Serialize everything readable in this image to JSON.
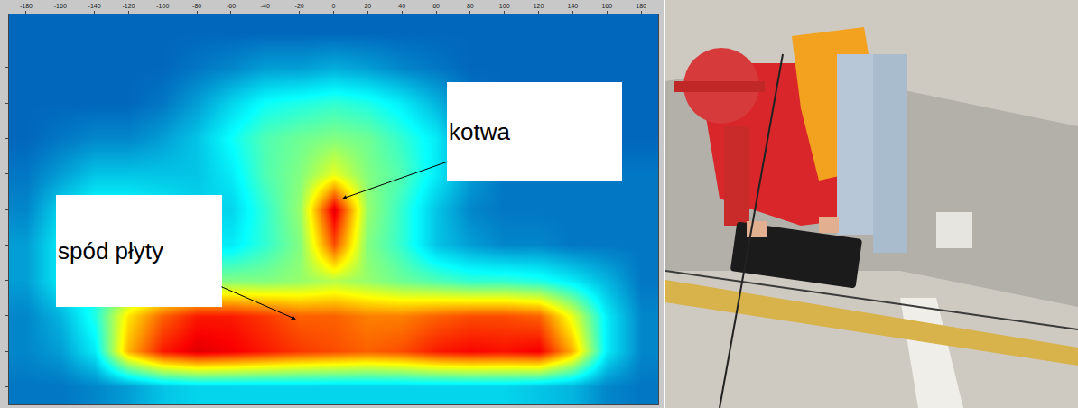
{
  "chart_data": {
    "type": "heatmap",
    "x": [
      -180,
      -160,
      -140,
      -120,
      -100,
      -80,
      -60,
      -40,
      -20,
      0,
      20,
      40,
      60,
      80,
      100,
      120,
      140,
      160,
      180
    ],
    "y": [
      0,
      1,
      2,
      3,
      4,
      5,
      6,
      7,
      8,
      9,
      10
    ],
    "z": [
      [
        0.2,
        0.2,
        0.22,
        0.25,
        0.3,
        0.32,
        0.32,
        0.32,
        0.32,
        0.32,
        0.32,
        0.32,
        0.32,
        0.32,
        0.32,
        0.3,
        0.28,
        0.22,
        0.2
      ],
      [
        0.22,
        0.25,
        0.35,
        0.7,
        0.85,
        0.9,
        0.88,
        0.85,
        0.82,
        0.8,
        0.78,
        0.8,
        0.85,
        0.87,
        0.86,
        0.88,
        0.7,
        0.35,
        0.22
      ],
      [
        0.22,
        0.28,
        0.4,
        0.65,
        0.78,
        0.85,
        0.85,
        0.82,
        0.78,
        0.78,
        0.75,
        0.75,
        0.78,
        0.8,
        0.8,
        0.78,
        0.6,
        0.35,
        0.22
      ],
      [
        0.25,
        0.35,
        0.4,
        0.45,
        0.48,
        0.5,
        0.5,
        0.5,
        0.52,
        0.55,
        0.52,
        0.48,
        0.45,
        0.42,
        0.42,
        0.4,
        0.35,
        0.28,
        0.2
      ],
      [
        0.25,
        0.35,
        0.4,
        0.4,
        0.38,
        0.35,
        0.35,
        0.42,
        0.5,
        0.8,
        0.5,
        0.42,
        0.3,
        0.25,
        0.22,
        0.22,
        0.2,
        0.2,
        0.2
      ],
      [
        0.22,
        0.32,
        0.38,
        0.38,
        0.35,
        0.32,
        0.32,
        0.42,
        0.52,
        0.9,
        0.52,
        0.42,
        0.3,
        0.22,
        0.2,
        0.2,
        0.2,
        0.2,
        0.2
      ],
      [
        0.2,
        0.25,
        0.3,
        0.3,
        0.3,
        0.3,
        0.35,
        0.45,
        0.5,
        0.6,
        0.5,
        0.45,
        0.35,
        0.25,
        0.2,
        0.2,
        0.2,
        0.2,
        0.2
      ],
      [
        0.18,
        0.2,
        0.22,
        0.22,
        0.25,
        0.3,
        0.38,
        0.45,
        0.48,
        0.5,
        0.48,
        0.42,
        0.35,
        0.22,
        0.18,
        0.18,
        0.18,
        0.18,
        0.18
      ],
      [
        0.18,
        0.18,
        0.18,
        0.18,
        0.2,
        0.25,
        0.32,
        0.38,
        0.4,
        0.42,
        0.4,
        0.35,
        0.28,
        0.2,
        0.18,
        0.18,
        0.18,
        0.18,
        0.18
      ],
      [
        0.18,
        0.18,
        0.18,
        0.18,
        0.18,
        0.2,
        0.22,
        0.25,
        0.25,
        0.27,
        0.25,
        0.22,
        0.2,
        0.18,
        0.18,
        0.18,
        0.18,
        0.18,
        0.18
      ],
      [
        0.18,
        0.18,
        0.18,
        0.18,
        0.18,
        0.18,
        0.18,
        0.18,
        0.18,
        0.18,
        0.18,
        0.18,
        0.18,
        0.18,
        0.18,
        0.18,
        0.18,
        0.18,
        0.18
      ]
    ],
    "zlim": [
      0,
      1
    ],
    "xlim": [
      -190,
      190
    ],
    "xticks": [
      -180,
      -160,
      -140,
      -120,
      -100,
      -80,
      -60,
      -40,
      -20,
      0,
      20,
      40,
      60,
      80,
      100,
      120,
      140,
      160,
      180
    ],
    "ylim": [
      -0.5,
      10.5
    ],
    "yticks": [
      0,
      1,
      2,
      3,
      4,
      5,
      6,
      7,
      8,
      9,
      10
    ],
    "tick_labels": "x",
    "annotations": [
      {
        "text": "kotwa",
        "x": 5,
        "y": 5.3
      },
      {
        "text": "spód płyty",
        "x": -22,
        "y": 1.9
      }
    ]
  }
}
